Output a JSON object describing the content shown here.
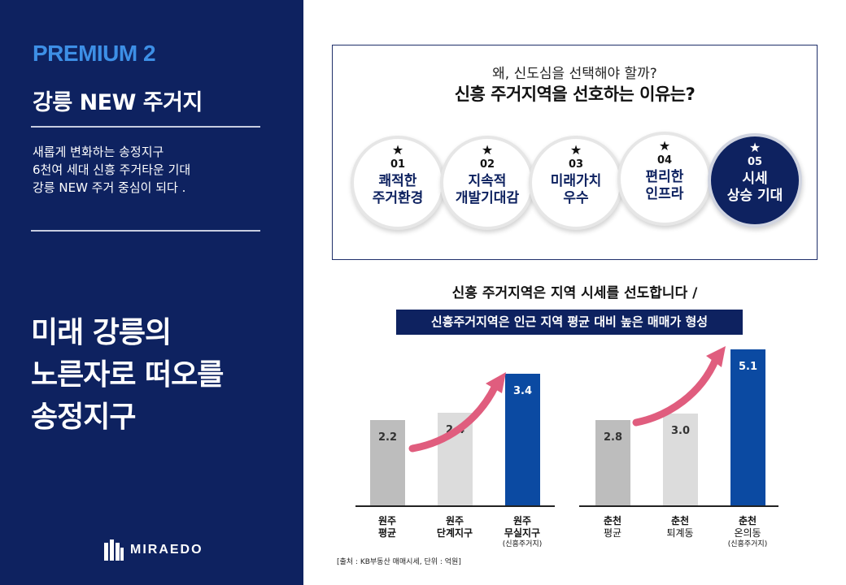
{
  "left": {
    "premium": "PREMIUM 2",
    "headline": "강릉 NEW 주거지",
    "lead": [
      "새롭게 변화하는 송정지구",
      "6천여 세대 신흥 주거타운 기대",
      "강릉 NEW 주거 중심이 되다 ."
    ],
    "big": [
      "미래 강릉의",
      "노른자로 떠오를",
      "송정지구"
    ],
    "brand": "MIRAEDO"
  },
  "reasons": {
    "question": "왜, 신도심을 선택해야 할까?",
    "title": "신흥 주거지역을 선호하는 이유는?",
    "star": "★",
    "items": [
      {
        "num": "01",
        "lines": [
          "쾌적한",
          "주거환경"
        ]
      },
      {
        "num": "02",
        "lines": [
          "지속적",
          "개발기대감"
        ]
      },
      {
        "num": "03",
        "lines": [
          "미래가치",
          "우수"
        ]
      },
      {
        "num": "04",
        "lines": [
          "편리한",
          "인프라"
        ]
      },
      {
        "num": "05",
        "lines": [
          "시세",
          "상승 기대"
        ]
      }
    ]
  },
  "section2": {
    "title": "신흥 주거지역은 지역 시세를 선도합니다 /",
    "banner": "신흥주거지역은 인근 지역 평균 대비 높은 매매가 형성",
    "source": "[출처 : KB부동산 매매시세, 단위 : 억원]"
  },
  "colors": {
    "navy": "#0e2260",
    "accent_blue": "#0b4aa2",
    "gray_dark": "#bdbdbd",
    "gray_light": "#dcdcdc",
    "arrow": "#e05d7e"
  },
  "chart_data": [
    {
      "type": "bar",
      "categories": [
        "원주 평균",
        "원주 단계지구",
        "원주 무실지구 (신흥주거지)"
      ],
      "labels": [
        [
          "원주",
          "평균",
          ""
        ],
        [
          "원주",
          "단계지구",
          ""
        ],
        [
          "원주",
          "무실지구",
          "(신흥주거지)"
        ]
      ],
      "values": [
        2.2,
        2.4,
        3.4
      ],
      "value_labels": [
        "2.2",
        "2.4",
        "3.4"
      ],
      "unit": "억원"
    },
    {
      "type": "bar",
      "categories": [
        "춘천 평균",
        "춘천 퇴계동",
        "춘천 온의동 (신흥주거지)"
      ],
      "labels": [
        [
          "춘천",
          "평균",
          ""
        ],
        [
          "춘천",
          "퇴계동",
          ""
        ],
        [
          "춘천",
          "온의동",
          "(신흥주거지)"
        ]
      ],
      "values": [
        2.8,
        3.0,
        5.1
      ],
      "value_labels": [
        "2.8",
        "3.0",
        "5.1"
      ],
      "unit": "억원"
    }
  ]
}
